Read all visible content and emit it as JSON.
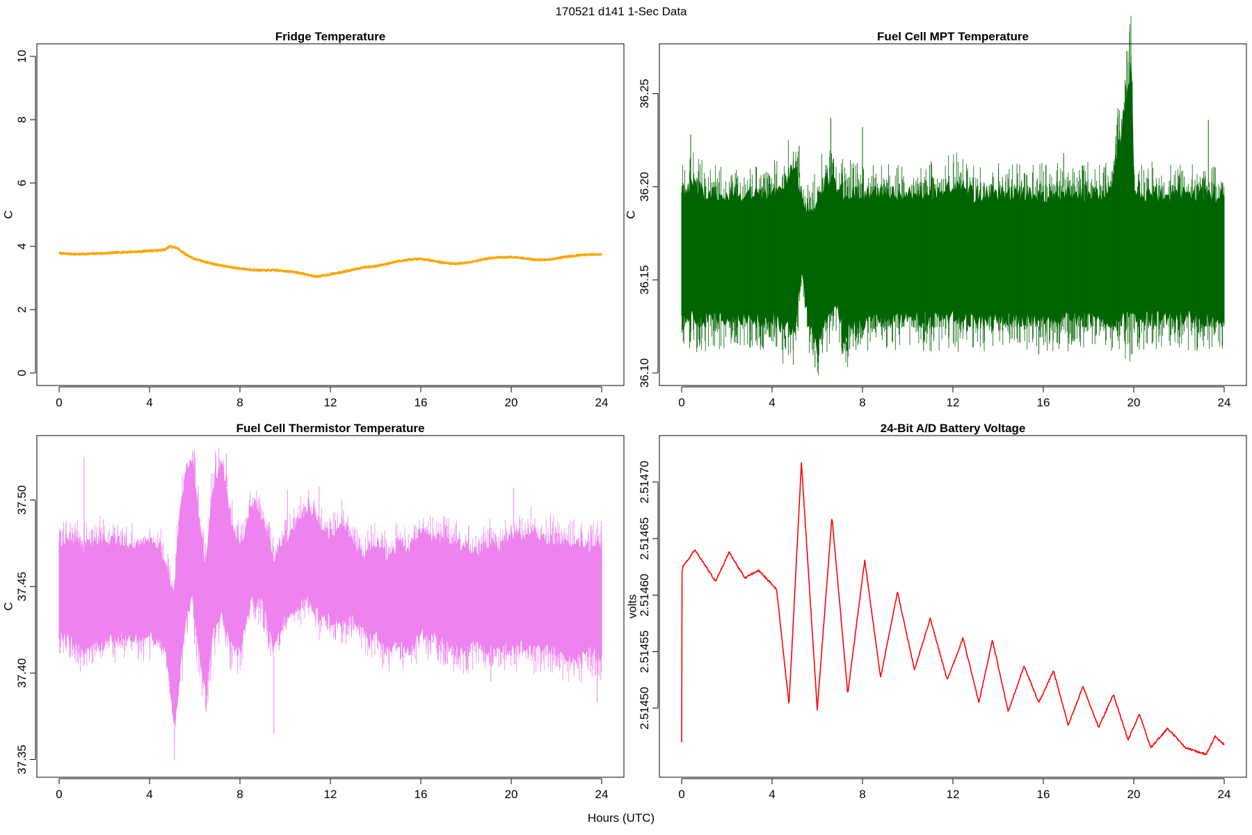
{
  "figure": {
    "suptitle": "170521   d141   1-Sec Data",
    "xlabel": "Hours (UTC)"
  },
  "chart_data": [
    {
      "type": "line",
      "title": "Fridge Temperature",
      "xlabel": "",
      "ylabel": "C",
      "xlim": [
        0,
        24
      ],
      "ylim": [
        0,
        10
      ],
      "xticks": [
        0,
        4,
        8,
        12,
        16,
        20,
        24
      ],
      "xtick_labels": [
        "0",
        "4",
        "8",
        "12",
        "16",
        "20",
        "24"
      ],
      "yticks": [
        0,
        2,
        4,
        6,
        8,
        10
      ],
      "ytick_labels": [
        "0",
        "2",
        "4",
        "6",
        "8",
        "10"
      ],
      "color": "#ffa500",
      "series": [
        {
          "name": "Fridge Temperature",
          "x": [
            0,
            0.5,
            1,
            1.5,
            2,
            2.5,
            3,
            3.5,
            4,
            4.4,
            4.7,
            4.9,
            5.2,
            5.6,
            6,
            6.5,
            7,
            7.5,
            8,
            8.5,
            9,
            9.5,
            10,
            10.5,
            11,
            11.3,
            11.6,
            12,
            12.5,
            13,
            13.5,
            14,
            14.5,
            15,
            15.5,
            16,
            16.5,
            17,
            17.5,
            18,
            18.5,
            19,
            19.5,
            20,
            20.5,
            21,
            21.5,
            22,
            22.5,
            23,
            23.5,
            24
          ],
          "y": [
            3.78,
            3.76,
            3.75,
            3.77,
            3.78,
            3.8,
            3.82,
            3.83,
            3.86,
            3.87,
            3.9,
            4.0,
            3.95,
            3.75,
            3.6,
            3.5,
            3.42,
            3.35,
            3.3,
            3.26,
            3.24,
            3.25,
            3.22,
            3.18,
            3.1,
            3.05,
            3.06,
            3.12,
            3.18,
            3.27,
            3.34,
            3.37,
            3.45,
            3.53,
            3.58,
            3.6,
            3.55,
            3.48,
            3.45,
            3.48,
            3.55,
            3.62,
            3.65,
            3.66,
            3.63,
            3.58,
            3.57,
            3.62,
            3.68,
            3.72,
            3.74,
            3.74
          ]
        }
      ]
    },
    {
      "type": "line",
      "title": "Fuel Cell MPT Temperature",
      "xlabel": "",
      "ylabel": "C",
      "xlim": [
        0,
        24
      ],
      "ylim": [
        36.1,
        36.27
      ],
      "xticks": [
        0,
        4,
        8,
        12,
        16,
        20,
        24
      ],
      "xtick_labels": [
        "0",
        "4",
        "8",
        "12",
        "16",
        "20",
        "24"
      ],
      "yticks": [
        36.1,
        36.15,
        36.2,
        36.25
      ],
      "ytick_labels": [
        "36.10",
        "36.15",
        "36.20",
        "36.25"
      ],
      "color": "#006400",
      "series": [
        {
          "name": "Fuel Cell MPT Temperature",
          "x": [
            0,
            0.5,
            1,
            1.5,
            2,
            2.5,
            3,
            3.5,
            4,
            4.5,
            5,
            5.3,
            5.6,
            6,
            6.4,
            6.8,
            7.2,
            7.6,
            8,
            8.5,
            9,
            10,
            11,
            12,
            13,
            14,
            15,
            16,
            17,
            18,
            19,
            19.9,
            20,
            21,
            22,
            23,
            24
          ],
          "upper": [
            36.2,
            36.205,
            36.2,
            36.2,
            36.198,
            36.2,
            36.2,
            36.198,
            36.2,
            36.205,
            36.215,
            36.2,
            36.19,
            36.195,
            36.21,
            36.205,
            36.2,
            36.2,
            36.2,
            36.2,
            36.2,
            36.2,
            36.2,
            36.205,
            36.2,
            36.2,
            36.2,
            36.2,
            36.2,
            36.2,
            36.2,
            36.27,
            36.2,
            36.2,
            36.2,
            36.2,
            36.2
          ],
          "lower": [
            36.125,
            36.125,
            36.125,
            36.125,
            36.125,
            36.125,
            36.125,
            36.125,
            36.125,
            36.12,
            36.12,
            36.148,
            36.125,
            36.108,
            36.125,
            36.135,
            36.115,
            36.122,
            36.123,
            36.125,
            36.125,
            36.125,
            36.125,
            36.125,
            36.125,
            36.125,
            36.125,
            36.125,
            36.125,
            36.125,
            36.125,
            36.125,
            36.125,
            36.125,
            36.125,
            36.125,
            36.125
          ],
          "peaks": [
            {
              "x": 0.4,
              "y": 36.228
            },
            {
              "x": 5.2,
              "y": 36.222
            },
            {
              "x": 6.6,
              "y": 36.237
            },
            {
              "x": 8.0,
              "y": 36.232
            },
            {
              "x": 16.9,
              "y": 36.218
            },
            {
              "x": 19.3,
              "y": 36.242
            },
            {
              "x": 19.9,
              "y": 36.27
            },
            {
              "x": 23.3,
              "y": 36.236
            }
          ],
          "troughs": [
            {
              "x": 4.6,
              "y": 36.113
            },
            {
              "x": 5.9,
              "y": 36.103
            },
            {
              "x": 7.3,
              "y": 36.112
            },
            {
              "x": 10.7,
              "y": 36.112
            },
            {
              "x": 15.8,
              "y": 36.11
            },
            {
              "x": 22.8,
              "y": 36.112
            }
          ]
        }
      ]
    },
    {
      "type": "line",
      "title": "Fuel Cell Thermistor Temperature",
      "xlabel": "",
      "ylabel": "C",
      "xlim": [
        0,
        24
      ],
      "ylim": [
        37.347,
        37.53
      ],
      "xticks": [
        0,
        4,
        8,
        12,
        16,
        20,
        24
      ],
      "xtick_labels": [
        "0",
        "4",
        "8",
        "12",
        "16",
        "20",
        "24"
      ],
      "yticks": [
        37.35,
        37.4,
        37.45,
        37.5
      ],
      "ytick_labels": [
        "37.35",
        "37.40",
        "37.45",
        "37.50"
      ],
      "color": "#ee82ee",
      "series": [
        {
          "name": "Fuel Cell Thermistor Temperature",
          "x": [
            0,
            0.5,
            1,
            1.5,
            2,
            2.5,
            3,
            3.5,
            4,
            4.5,
            4.8,
            5.1,
            5.3,
            5.6,
            5.9,
            6.2,
            6.5,
            6.8,
            7.2,
            7.6,
            8,
            8.5,
            9,
            9.5,
            10,
            10.5,
            11,
            11.5,
            12,
            12.5,
            13,
            13.5,
            14,
            14.5,
            15,
            15.5,
            16,
            16.5,
            17,
            17.5,
            18,
            18.5,
            19,
            19.5,
            20,
            20.5,
            21,
            21.5,
            22,
            22.5,
            23,
            23.5,
            24
          ],
          "upper": [
            37.48,
            37.48,
            37.476,
            37.478,
            37.48,
            37.48,
            37.478,
            37.476,
            37.48,
            37.475,
            37.46,
            37.45,
            37.49,
            37.52,
            37.525,
            37.49,
            37.465,
            37.51,
            37.525,
            37.49,
            37.475,
            37.5,
            37.492,
            37.47,
            37.48,
            37.49,
            37.498,
            37.49,
            37.482,
            37.49,
            37.478,
            37.47,
            37.48,
            37.47,
            37.478,
            37.475,
            37.485,
            37.48,
            37.48,
            37.478,
            37.475,
            37.472,
            37.478,
            37.476,
            37.485,
            37.48,
            37.485,
            37.48,
            37.48,
            37.478,
            37.478,
            37.476,
            37.476
          ],
          "lower": [
            37.42,
            37.416,
            37.41,
            37.413,
            37.415,
            37.417,
            37.416,
            37.418,
            37.417,
            37.415,
            37.405,
            37.363,
            37.39,
            37.43,
            37.44,
            37.41,
            37.385,
            37.42,
            37.43,
            37.412,
            37.41,
            37.44,
            37.437,
            37.41,
            37.43,
            37.435,
            37.44,
            37.43,
            37.428,
            37.425,
            37.43,
            37.42,
            37.418,
            37.41,
            37.415,
            37.41,
            37.42,
            37.418,
            37.415,
            37.41,
            37.41,
            37.415,
            37.41,
            37.412,
            37.41,
            37.413,
            37.41,
            37.412,
            37.41,
            37.405,
            37.405,
            37.41,
            37.405
          ],
          "peaks": [
            {
              "x": 1.1,
              "y": 37.525
            },
            {
              "x": 5.9,
              "y": 37.528
            },
            {
              "x": 7.4,
              "y": 37.527
            },
            {
              "x": 10.1,
              "y": 37.506
            },
            {
              "x": 11.5,
              "y": 37.508
            },
            {
              "x": 20.1,
              "y": 37.507
            }
          ],
          "troughs": [
            {
              "x": 5.1,
              "y": 37.35
            },
            {
              "x": 6.5,
              "y": 37.385
            },
            {
              "x": 9.5,
              "y": 37.365
            },
            {
              "x": 19.1,
              "y": 37.395
            },
            {
              "x": 23.8,
              "y": 37.383
            }
          ]
        }
      ]
    },
    {
      "type": "line",
      "title": "24-Bit A/D Battery Voltage",
      "xlabel": "",
      "ylabel": "volts",
      "xlim": [
        0,
        24
      ],
      "ylim": [
        2.51445,
        2.51473
      ],
      "xticks": [
        0,
        4,
        8,
        12,
        16,
        20,
        24
      ],
      "xtick_labels": [
        "0",
        "4",
        "8",
        "12",
        "16",
        "20",
        "24"
      ],
      "yticks": [
        2.5145,
        2.51455,
        2.5146,
        2.51465,
        2.5147
      ],
      "ytick_labels": [
        "2.51450",
        "2.51455",
        "2.51460",
        "2.51465",
        "2.51470"
      ],
      "color": "#ff0000",
      "series": [
        {
          "name": "24-Bit A/D Battery Voltage",
          "x": [
            0,
            0.02,
            0.05,
            0.6,
            1.5,
            2.1,
            2.8,
            3.4,
            4.2,
            4.75,
            5.3,
            6.0,
            6.65,
            7.35,
            8.1,
            8.8,
            9.55,
            10.3,
            11.0,
            11.75,
            12.45,
            13.15,
            13.75,
            14.45,
            15.15,
            15.8,
            16.45,
            17.1,
            17.75,
            18.45,
            19.1,
            19.75,
            20.25,
            20.75,
            21.5,
            22.3,
            23.2,
            23.6,
            24
          ],
          "y": [
            2.51447,
            2.51462,
            2.514625,
            2.51464,
            2.514612,
            2.514638,
            2.514615,
            2.514622,
            2.514605,
            2.514503,
            2.514717,
            2.514499,
            2.514669,
            2.514513,
            2.514631,
            2.514527,
            2.514603,
            2.514534,
            2.514579,
            2.514525,
            2.514562,
            2.514505,
            2.51456,
            2.514497,
            2.514537,
            2.514505,
            2.514533,
            2.514485,
            2.514519,
            2.514483,
            2.514512,
            2.514472,
            2.514495,
            2.514465,
            2.514482,
            2.514465,
            2.514459,
            2.514475,
            2.514468
          ]
        }
      ]
    }
  ]
}
